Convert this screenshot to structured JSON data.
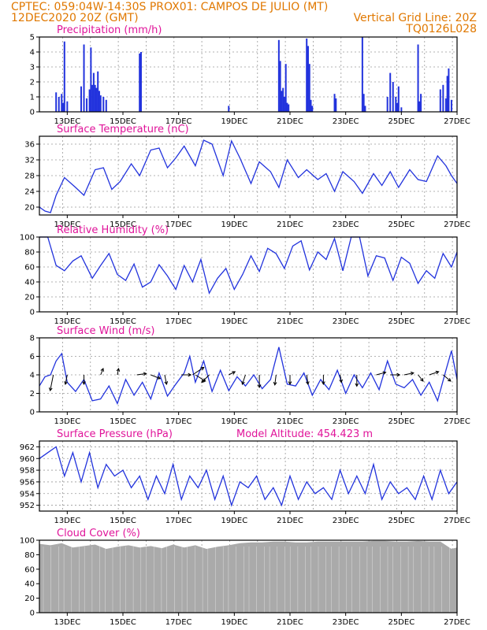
{
  "header": {
    "line1": "CPTEC:   059:04W-14:30S   PROX01: CAMPOS DE JULIO (MT)",
    "line2_left": "12DEC2020 20Z (GMT)",
    "line2_right": "Vertical Grid Line: 20Z",
    "line3_right": "TQ0126L028"
  },
  "colors": {
    "header": "#e07800",
    "title": "#e0149a",
    "series": "#2233dd",
    "cloud": "#aaaaaa",
    "arrow": "#000000"
  },
  "chart_data": [
    {
      "type": "bar",
      "title": "Precipitation (mm/h)",
      "ylim": [
        0,
        5
      ],
      "yticks": [
        0,
        1,
        2,
        3,
        4,
        5
      ],
      "xticks": [
        "13DEC",
        "15DEC",
        "17DEC",
        "19DEC",
        "21DEC",
        "23DEC",
        "25DEC",
        "27DEC"
      ],
      "x_days": [
        12.6,
        12.7,
        12.8,
        12.85,
        12.9,
        13.0,
        13.5,
        13.6,
        13.7,
        13.8,
        13.85,
        13.9,
        13.95,
        14.0,
        14.05,
        14.1,
        14.15,
        14.2,
        14.3,
        14.4,
        15.6,
        15.65,
        18.8,
        20.6,
        20.65,
        20.7,
        20.75,
        20.8,
        20.85,
        20.9,
        20.95,
        21.6,
        21.65,
        21.7,
        21.75,
        21.8,
        22.6,
        22.65,
        23.6,
        23.65,
        23.7,
        24.5,
        24.6,
        24.7,
        24.8,
        24.85,
        24.9,
        25.0,
        25.6,
        25.65,
        25.7,
        26.4,
        26.5,
        26.6,
        26.65,
        26.7,
        26.8
      ],
      "values": [
        1.3,
        1.0,
        1.2,
        0.6,
        4.7,
        0.7,
        1.7,
        4.5,
        0.9,
        1.5,
        4.3,
        1.8,
        2.6,
        1.8,
        1.6,
        2.7,
        1.4,
        1.1,
        1.0,
        0.8,
        3.9,
        4.0,
        0.4,
        4.8,
        3.4,
        1.4,
        1.6,
        1.0,
        3.2,
        0.6,
        0.5,
        4.9,
        4.4,
        3.2,
        0.8,
        0.4,
        1.2,
        0.9,
        5.0,
        1.2,
        0.4,
        1.0,
        2.6,
        2.0,
        1.0,
        0.6,
        1.7,
        0.3,
        4.5,
        0.7,
        1.2,
        1.5,
        1.8,
        0.9,
        2.4,
        2.9,
        0.8
      ]
    },
    {
      "type": "line",
      "title": "Surface Temperature (nC)",
      "ylim": [
        18,
        38
      ],
      "yticks": [
        20,
        24,
        28,
        32,
        36
      ],
      "xticks": [
        "13DEC",
        "15DEC",
        "17DEC",
        "19DEC",
        "21DEC",
        "23DEC",
        "25DEC",
        "27DEC"
      ],
      "x_days": [
        12.0,
        12.2,
        12.4,
        12.6,
        12.9,
        13.3,
        13.6,
        14.0,
        14.3,
        14.6,
        14.9,
        15.3,
        15.6,
        16.0,
        16.3,
        16.6,
        16.9,
        17.2,
        17.6,
        17.9,
        18.2,
        18.6,
        18.9,
        19.2,
        19.6,
        19.9,
        20.3,
        20.6,
        20.9,
        21.3,
        21.6,
        22.0,
        22.3,
        22.6,
        22.9,
        23.3,
        23.6,
        24.0,
        24.3,
        24.6,
        24.9,
        25.3,
        25.6,
        25.9,
        26.3,
        26.6,
        26.8,
        27.0
      ],
      "values": [
        20.0,
        19.0,
        18.6,
        23.0,
        27.5,
        25.0,
        23.0,
        29.5,
        30.0,
        24.5,
        26.5,
        31.0,
        28.0,
        34.5,
        35.0,
        30.0,
        32.5,
        35.5,
        30.5,
        37.0,
        36.0,
        28.0,
        36.8,
        32.5,
        26.0,
        31.5,
        29.0,
        25.0,
        32.0,
        27.5,
        29.5,
        27.0,
        28.5,
        24.0,
        29.0,
        26.5,
        23.5,
        28.5,
        25.5,
        29.0,
        25.0,
        29.5,
        27.0,
        26.5,
        33.0,
        30.5,
        28.0,
        26.0
      ]
    },
    {
      "type": "line",
      "title": "Relative Humidity (%)",
      "ylim": [
        0,
        100
      ],
      "yticks": [
        0,
        20,
        40,
        60,
        80,
        100
      ],
      "xticks": [
        "13DEC",
        "15DEC",
        "17DEC",
        "19DEC",
        "21DEC",
        "23DEC",
        "25DEC",
        "27DEC"
      ],
      "x_days": [
        12.0,
        12.3,
        12.6,
        12.9,
        13.2,
        13.5,
        13.9,
        14.2,
        14.5,
        14.8,
        15.1,
        15.4,
        15.7,
        16.0,
        16.3,
        16.6,
        16.9,
        17.2,
        17.5,
        17.8,
        18.1,
        18.4,
        18.7,
        19.0,
        19.3,
        19.6,
        19.9,
        20.2,
        20.5,
        20.8,
        21.1,
        21.4,
        21.7,
        22.0,
        22.3,
        22.6,
        22.9,
        23.2,
        23.5,
        23.8,
        24.1,
        24.4,
        24.7,
        25.0,
        25.3,
        25.6,
        25.9,
        26.2,
        26.5,
        26.8,
        27.0
      ],
      "values": [
        100,
        100,
        62,
        55,
        68,
        75,
        45,
        62,
        78,
        50,
        42,
        64,
        33,
        40,
        63,
        48,
        30,
        62,
        40,
        70,
        25,
        45,
        58,
        30,
        50,
        75,
        54,
        85,
        78,
        58,
        88,
        95,
        56,
        80,
        70,
        98,
        55,
        100,
        100,
        48,
        75,
        72,
        42,
        73,
        65,
        38,
        55,
        45,
        78,
        60,
        80
      ]
    },
    {
      "type": "line",
      "title": "Surface Wind (m/s)",
      "ylim": [
        0,
        8
      ],
      "yticks": [
        0,
        2,
        4,
        6,
        8
      ],
      "xticks": [
        "13DEC",
        "15DEC",
        "17DEC",
        "19DEC",
        "21DEC",
        "23DEC",
        "25DEC",
        "27DEC"
      ],
      "x_days": [
        12.0,
        12.2,
        12.4,
        12.6,
        12.8,
        13.0,
        13.3,
        13.6,
        13.9,
        14.2,
        14.5,
        14.8,
        15.1,
        15.4,
        15.7,
        16.0,
        16.3,
        16.6,
        16.9,
        17.2,
        17.4,
        17.6,
        17.9,
        18.2,
        18.5,
        18.8,
        19.1,
        19.4,
        19.7,
        20.0,
        20.3,
        20.6,
        20.9,
        21.2,
        21.5,
        21.8,
        22.1,
        22.4,
        22.7,
        23.0,
        23.3,
        23.6,
        23.9,
        24.2,
        24.5,
        24.8,
        25.1,
        25.4,
        25.7,
        26.0,
        26.3,
        26.6,
        26.8,
        27.0
      ],
      "values": [
        2.8,
        3.8,
        4.0,
        5.5,
        6.3,
        3.2,
        2.2,
        3.5,
        1.2,
        1.4,
        2.8,
        0.9,
        3.5,
        1.8,
        3.2,
        1.4,
        4.2,
        1.7,
        3.0,
        4.2,
        6.0,
        3.2,
        5.5,
        2.2,
        4.5,
        2.3,
        3.8,
        2.8,
        4.0,
        2.5,
        3.5,
        7.0,
        3.0,
        2.8,
        4.2,
        1.8,
        3.5,
        2.4,
        4.5,
        2.0,
        4.0,
        2.6,
        4.2,
        2.4,
        5.5,
        3.0,
        2.6,
        3.5,
        1.8,
        3.2,
        1.2,
        4.5,
        6.6,
        3.5
      ],
      "vectors": [
        {
          "x": 12.5,
          "u": -0.5,
          "v": -2.5
        },
        {
          "x": 13.0,
          "u": -0.3,
          "v": -1.5
        },
        {
          "x": 13.6,
          "u": 0.0,
          "v": -1.5
        },
        {
          "x": 14.2,
          "u": 0.4,
          "v": 1.0
        },
        {
          "x": 14.8,
          "u": 0.2,
          "v": 1.0
        },
        {
          "x": 15.5,
          "u": 1.5,
          "v": 0.2
        },
        {
          "x": 16.0,
          "u": 1.5,
          "v": -0.6
        },
        {
          "x": 16.5,
          "u": 0.3,
          "v": -1.5
        },
        {
          "x": 17.1,
          "u": 1.5,
          "v": 0.0
        },
        {
          "x": 17.5,
          "u": 1.8,
          "v": 1.2
        },
        {
          "x": 17.6,
          "u": 1.6,
          "v": -1.0
        },
        {
          "x": 18.1,
          "u": -1.2,
          "v": -1.2
        },
        {
          "x": 18.8,
          "u": 1.0,
          "v": 0.5
        },
        {
          "x": 19.4,
          "u": -0.5,
          "v": -1.5
        },
        {
          "x": 19.9,
          "u": 0.0,
          "v": -2.0
        },
        {
          "x": 20.5,
          "u": -0.2,
          "v": -1.6
        },
        {
          "x": 21.0,
          "u": 0.0,
          "v": -1.5
        },
        {
          "x": 21.6,
          "u": 0.2,
          "v": -1.5
        },
        {
          "x": 22.2,
          "u": 0.0,
          "v": -1.5
        },
        {
          "x": 22.8,
          "u": 0.2,
          "v": -1.2
        },
        {
          "x": 23.4,
          "u": 0.0,
          "v": -1.8
        },
        {
          "x": 24.1,
          "u": 1.5,
          "v": 0.4
        },
        {
          "x": 24.6,
          "u": 1.5,
          "v": 0.0
        },
        {
          "x": 25.1,
          "u": 1.5,
          "v": 0.3
        },
        {
          "x": 25.6,
          "u": 0.8,
          "v": -1.0
        },
        {
          "x": 26.0,
          "u": 1.5,
          "v": 0.5
        },
        {
          "x": 26.5,
          "u": 1.2,
          "v": -1.0
        }
      ]
    },
    {
      "type": "line",
      "title": "Surface Pressure (hPa)",
      "subtitle": "Model Altitude: 454.423 m",
      "ylim": [
        951,
        963
      ],
      "yticks": [
        952,
        954,
        956,
        958,
        960,
        962
      ],
      "xticks": [
        "13DEC",
        "15DEC",
        "17DEC",
        "19DEC",
        "21DEC",
        "23DEC",
        "25DEC",
        "27DEC"
      ],
      "x_days": [
        12.0,
        12.3,
        12.6,
        12.9,
        13.2,
        13.5,
        13.8,
        14.1,
        14.4,
        14.7,
        15.0,
        15.3,
        15.6,
        15.9,
        16.2,
        16.5,
        16.8,
        17.1,
        17.4,
        17.7,
        18.0,
        18.3,
        18.6,
        18.9,
        19.2,
        19.5,
        19.8,
        20.1,
        20.4,
        20.7,
        21.0,
        21.3,
        21.6,
        21.9,
        22.2,
        22.5,
        22.8,
        23.1,
        23.4,
        23.7,
        24.0,
        24.3,
        24.6,
        24.9,
        25.2,
        25.5,
        25.8,
        26.1,
        26.4,
        26.7,
        27.0
      ],
      "values": [
        960,
        961,
        962,
        957,
        961,
        956,
        961,
        955,
        959,
        957,
        958,
        955,
        957,
        953,
        957,
        954,
        959,
        953,
        957,
        955,
        958,
        953,
        957,
        952,
        956,
        955,
        957,
        953,
        955,
        952,
        957,
        953,
        956,
        954,
        955,
        953,
        958,
        954,
        957,
        954,
        959,
        953,
        956,
        954,
        955,
        953,
        957,
        953,
        958,
        954,
        956
      ]
    },
    {
      "type": "area",
      "title": "Cloud Cover (%)",
      "ylim": [
        0,
        100
      ],
      "yticks": [
        0,
        20,
        40,
        60,
        80,
        100
      ],
      "xticks": [
        "13DEC",
        "15DEC",
        "17DEC",
        "19DEC",
        "21DEC",
        "23DEC",
        "25DEC",
        "27DEC"
      ],
      "x_days": [
        12.0,
        12.4,
        12.8,
        13.2,
        13.6,
        14.0,
        14.4,
        14.8,
        15.2,
        15.6,
        16.0,
        16.4,
        16.8,
        17.2,
        17.6,
        18.0,
        18.4,
        18.8,
        19.2,
        19.6,
        20.0,
        20.4,
        20.8,
        21.2,
        21.6,
        22.0,
        22.4,
        22.8,
        23.2,
        23.6,
        24.0,
        24.4,
        24.8,
        25.2,
        25.6,
        26.0,
        26.4,
        26.8,
        27.0
      ],
      "values": [
        95,
        93,
        96,
        90,
        92,
        94,
        88,
        91,
        93,
        90,
        92,
        89,
        94,
        90,
        93,
        88,
        91,
        93,
        96,
        97,
        97,
        98,
        98,
        97,
        97,
        98,
        98,
        98,
        98,
        98,
        99,
        99,
        98,
        98,
        99,
        98,
        98,
        88,
        90
      ]
    }
  ]
}
